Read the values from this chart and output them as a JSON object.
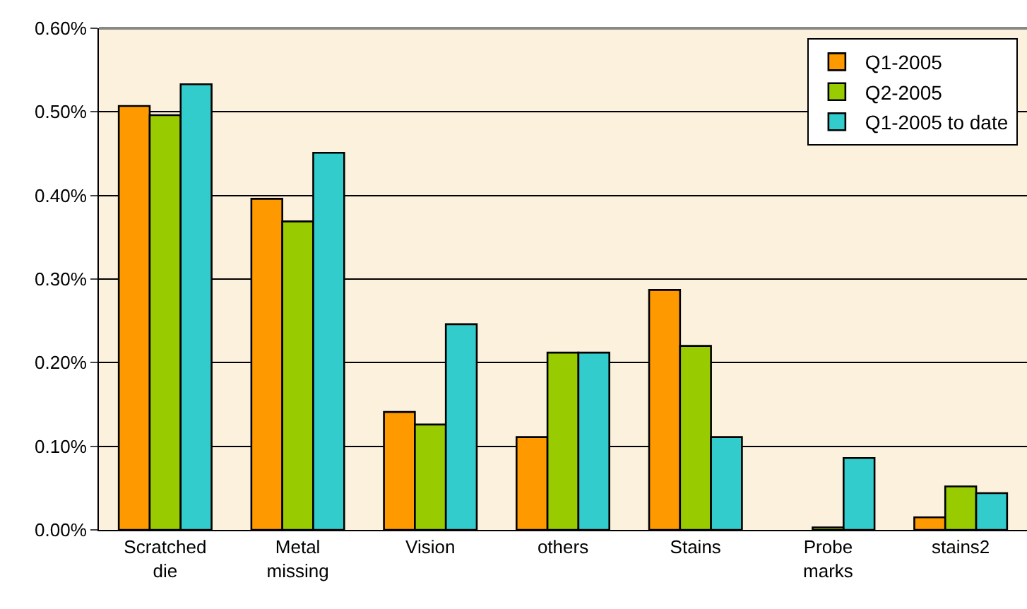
{
  "chart_data": {
    "type": "bar",
    "categories": [
      "Scratched die",
      "Metal missing",
      "Vision",
      "others",
      "Stains",
      "Probe marks",
      "stains2"
    ],
    "series": [
      {
        "name": "Q1-2005",
        "color": "#ff9900",
        "values": [
          0.507,
          0.396,
          0.141,
          0.111,
          0.287,
          null,
          0.015
        ]
      },
      {
        "name": "Q2-2005",
        "color": "#99cc00",
        "values": [
          0.496,
          0.369,
          0.126,
          0.212,
          0.22,
          0.003,
          0.052
        ]
      },
      {
        "name": "Q1-2005 to date",
        "color": "#33cccc",
        "values": [
          0.533,
          0.451,
          0.246,
          0.212,
          0.111,
          0.086,
          0.044
        ]
      }
    ],
    "ylim": [
      0,
      0.6
    ],
    "yticks": [
      {
        "value": 0,
        "label": "0.00%"
      },
      {
        "value": 0.1,
        "label": "0.10%"
      },
      {
        "value": 0.2,
        "label": "0.20%"
      },
      {
        "value": 0.3,
        "label": "0.30%"
      },
      {
        "value": 0.4,
        "label": "0.40%"
      },
      {
        "value": 0.5,
        "label": "0.50%"
      },
      {
        "value": 0.6,
        "label": "0.60%"
      }
    ],
    "grid": "y",
    "legend": "top right"
  }
}
